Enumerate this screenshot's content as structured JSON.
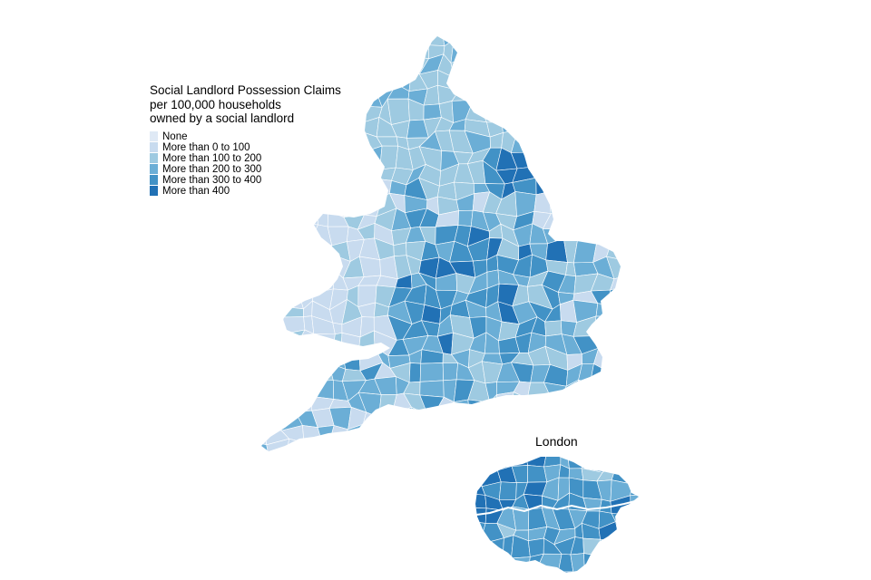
{
  "legend": {
    "title": "Social Landlord Possession Claims\nper 100,000 households\nowned by a social landlord",
    "classes": [
      {
        "label": "None",
        "color": "#dfe9f5"
      },
      {
        "label": "More than 0 to 100",
        "color": "#c8dbef"
      },
      {
        "label": "More than 100 to 200",
        "color": "#9ecae1"
      },
      {
        "label": "More than 200 to 300",
        "color": "#6baed6"
      },
      {
        "label": "More than 300 to 400",
        "color": "#4292c6"
      },
      {
        "label": "More than 400",
        "color": "#2171b5"
      }
    ]
  },
  "inset": {
    "title": "London"
  },
  "border_color": "#ffffff"
}
